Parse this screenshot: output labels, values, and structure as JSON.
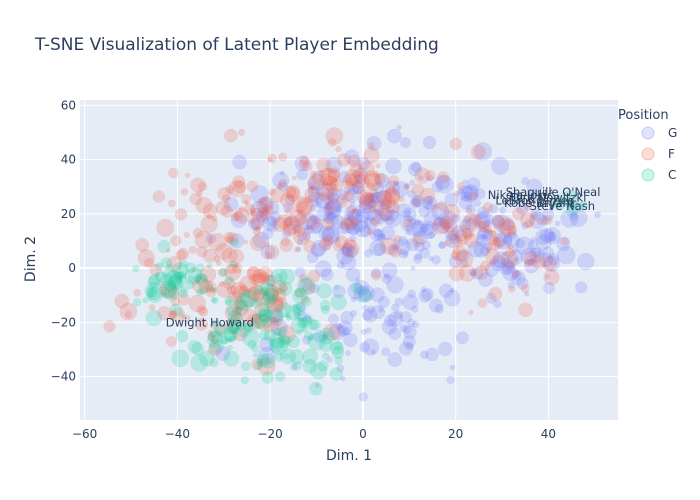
{
  "chart_data": {
    "type": "scatter",
    "title": "T-SNE Visualization of Latent Player Embedding",
    "xlabel": "Dim. 1",
    "ylabel": "Dim. 2",
    "xlim": [
      -61,
      55
    ],
    "ylim": [
      -56,
      62
    ],
    "x_ticks": [
      -60,
      -40,
      -20,
      0,
      20,
      40
    ],
    "y_ticks": [
      -40,
      -20,
      0,
      20,
      40,
      60
    ],
    "grid": true,
    "plot_background": "#e5ecf6",
    "legend": {
      "title": "Position",
      "placement": "right"
    },
    "series": [
      {
        "name": "G",
        "color": "#636efa",
        "opacity": 0.2
      },
      {
        "name": "F",
        "color": "#ef553b",
        "opacity": 0.2
      },
      {
        "name": "C",
        "color": "#00cc96",
        "opacity": 0.2
      }
    ],
    "clusters": [
      {
        "series": "G",
        "cx": 2,
        "cy": 20,
        "sx": 14,
        "sy": 11,
        "n": 240
      },
      {
        "series": "G",
        "cx": 35,
        "cy": 10,
        "sx": 8,
        "sy": 10,
        "n": 90
      },
      {
        "series": "G",
        "cx": 0,
        "cy": -20,
        "sx": 12,
        "sy": 10,
        "n": 90
      },
      {
        "series": "F",
        "cx": -22,
        "cy": 20,
        "sx": 10,
        "sy": 10,
        "n": 110
      },
      {
        "series": "F",
        "cx": 0,
        "cy": 30,
        "sx": 8,
        "sy": 8,
        "n": 80
      },
      {
        "series": "F",
        "cx": -30,
        "cy": -10,
        "sx": 10,
        "sy": 10,
        "n": 110
      },
      {
        "series": "F",
        "cx": 25,
        "cy": 10,
        "sx": 10,
        "sy": 10,
        "n": 70
      },
      {
        "series": "C",
        "cx": -20,
        "cy": -20,
        "sx": 9,
        "sy": 10,
        "n": 140
      },
      {
        "series": "C",
        "cx": -40,
        "cy": -5,
        "sx": 5,
        "sy": 6,
        "n": 50
      },
      {
        "series": "C",
        "cx": 45,
        "cy": 23,
        "sx": 1.5,
        "sy": 1.5,
        "n": 8
      }
    ],
    "annotations": [
      {
        "text": "Shaquille O'Neal",
        "x": 41,
        "y": 28
      },
      {
        "text": "Nikola Jokić",
        "x": 34,
        "y": 27
      },
      {
        "text": "LeBron James",
        "x": 37,
        "y": 25
      },
      {
        "text": "Kobe Bryant",
        "x": 38,
        "y": 24
      },
      {
        "text": "Dirk Nowitzki",
        "x": 40,
        "y": 26
      },
      {
        "text": "Steve Nash",
        "x": 43,
        "y": 23
      },
      {
        "text": "Dwight Howard",
        "x": -33,
        "y": -20
      }
    ]
  }
}
